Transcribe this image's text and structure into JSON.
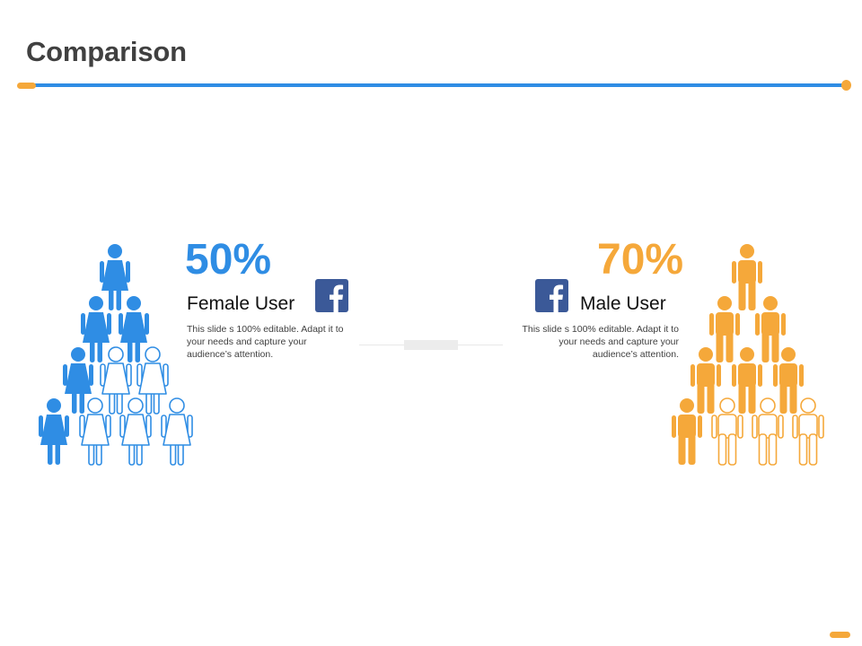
{
  "slide": {
    "title": "Comparison"
  },
  "colors": {
    "accent_blue": "#2f8de4",
    "accent_orange": "#f5a83a",
    "facebook_blue": "#3b5998",
    "title_gray": "#404040"
  },
  "female": {
    "percent": "50%",
    "label": "Female User",
    "description": "This slide s 100% editable. Adapt it to your needs and capture your audience’s attention.",
    "icon": "facebook-icon",
    "figure_icon": "female-person-icon",
    "total_figures": 10,
    "filled_figures": 5
  },
  "male": {
    "percent": "70%",
    "label": "Male User",
    "description": "This slide s 100% editable. Adapt it to your needs and capture your audience’s attention.",
    "icon": "facebook-icon",
    "figure_icon": "male-person-icon",
    "total_figures": 10,
    "filled_figures": 7
  }
}
